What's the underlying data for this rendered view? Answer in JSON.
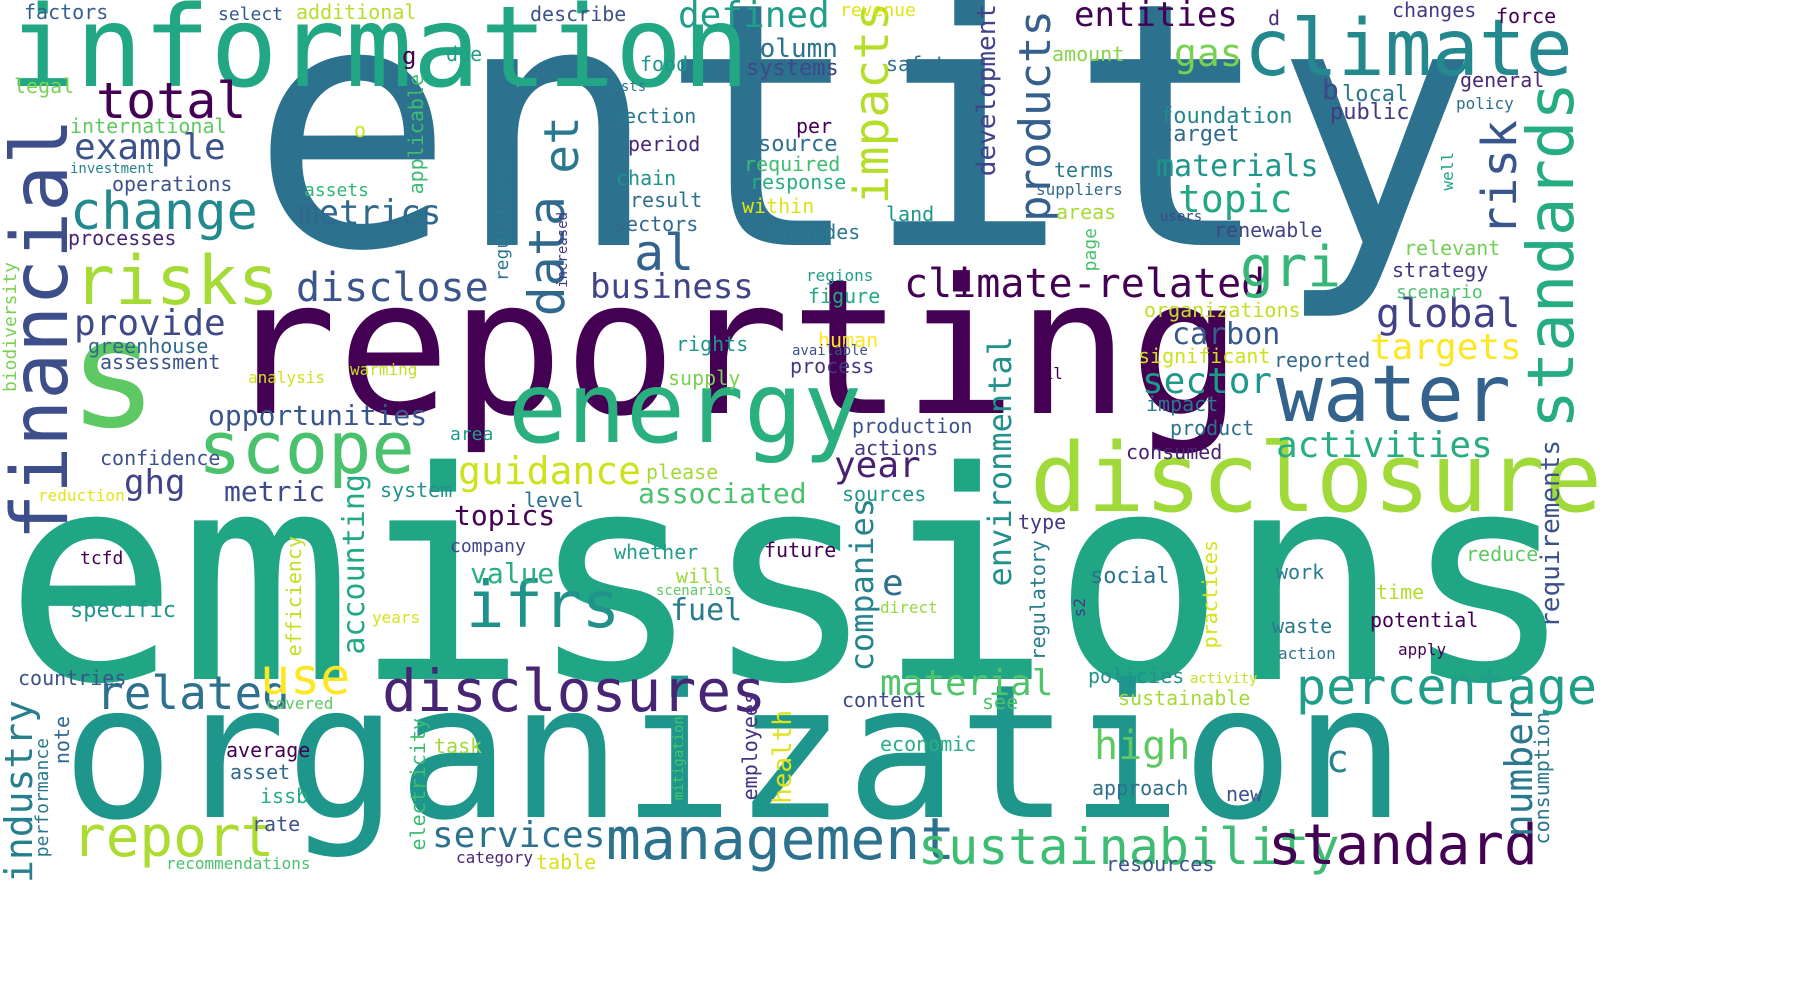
{
  "words": [
    {
      "text": "entity",
      "color": "#2c728e"
    },
    {
      "text": "emissions",
      "color": "#21a685"
    },
    {
      "text": "reporting",
      "color": "#440154"
    },
    {
      "text": "organization",
      "color": "#1f968b"
    },
    {
      "text": "information",
      "color": "#22a784"
    },
    {
      "text": "climate",
      "color": "#23898e"
    },
    {
      "text": "disclosure",
      "color": "#a0da39"
    },
    {
      "text": "energy",
      "color": "#2ab07f"
    },
    {
      "text": "water",
      "color": "#33638d"
    },
    {
      "text": "standards",
      "color": "#25ac82"
    },
    {
      "text": "financial",
      "color": "#3d4e8a"
    },
    {
      "text": "s",
      "color": "#5ec962"
    },
    {
      "text": "scope",
      "color": "#4ac16d"
    },
    {
      "text": "risks",
      "color": "#a5db36"
    },
    {
      "text": "disclosures",
      "color": "#482475"
    },
    {
      "text": "management",
      "color": "#2c728e"
    },
    {
      "text": "sustainability",
      "color": "#3fbc73"
    },
    {
      "text": "standard",
      "color": "#440154"
    },
    {
      "text": "report",
      "color": "#addc30"
    },
    {
      "text": "percentage",
      "color": "#1f9e89"
    },
    {
      "text": "climate-related",
      "color": "#440154"
    },
    {
      "text": "total",
      "color": "#440154"
    },
    {
      "text": "change",
      "color": "#23898e"
    },
    {
      "text": "related",
      "color": "#2c728e"
    },
    {
      "text": "ifrs",
      "color": "#21918c"
    },
    {
      "text": "products",
      "color": "#355f8d"
    },
    {
      "text": "impacts",
      "color": "#b5de2b"
    },
    {
      "text": "risk",
      "color": "#39568c"
    },
    {
      "text": "gri",
      "color": "#35b779"
    },
    {
      "text": "global",
      "color": "#424086"
    },
    {
      "text": "guidance",
      "color": "#cde11d"
    },
    {
      "text": "use",
      "color": "#fde725"
    },
    {
      "text": "data",
      "color": "#31688e"
    },
    {
      "text": "et",
      "color": "#2a788e"
    },
    {
      "text": "al",
      "color": "#33638d"
    },
    {
      "text": "disclose",
      "color": "#3a548c"
    },
    {
      "text": "business",
      "color": "#414487"
    },
    {
      "text": "metrics",
      "color": "#31688e"
    },
    {
      "text": "topic",
      "color": "#22a884"
    },
    {
      "text": "defined",
      "color": "#1f9e89"
    },
    {
      "text": "entities",
      "color": "#440154"
    },
    {
      "text": "gas",
      "color": "#7ad151"
    },
    {
      "text": "example",
      "color": "#3b528b"
    },
    {
      "text": "provide",
      "color": "#3e4a89"
    },
    {
      "text": "opportunities",
      "color": "#39568c"
    },
    {
      "text": "ghg",
      "color": "#404387"
    },
    {
      "text": "metric",
      "color": "#3e4989"
    },
    {
      "text": "year",
      "color": "#482173"
    },
    {
      "text": "sector",
      "color": "#1f9a8a"
    },
    {
      "text": "activities",
      "color": "#27ad81"
    },
    {
      "text": "targets",
      "color": "#fde725"
    },
    {
      "text": "carbon",
      "color": "#38598c"
    },
    {
      "text": "materials",
      "color": "#1f968b"
    },
    {
      "text": "environmental",
      "color": "#21918c"
    },
    {
      "text": "companies",
      "color": "#25848e"
    },
    {
      "text": "accounting",
      "color": "#22a884"
    },
    {
      "text": "material",
      "color": "#50c46a"
    },
    {
      "text": "associated",
      "color": "#4ac16d"
    },
    {
      "text": "topics",
      "color": "#440154"
    },
    {
      "text": "value",
      "color": "#29af7f"
    },
    {
      "text": "fuel",
      "color": "#287c8e"
    },
    {
      "text": "services",
      "color": "#2c728e"
    },
    {
      "text": "high",
      "color": "#5ec962"
    },
    {
      "text": "c",
      "color": "#25848e"
    },
    {
      "text": "e",
      "color": "#2c728e"
    },
    {
      "text": "industry",
      "color": "#277f8e"
    },
    {
      "text": "number",
      "color": "#2a788e"
    },
    {
      "text": "requirements",
      "color": "#3b528b"
    },
    {
      "text": "column",
      "color": "#2c728e"
    },
    {
      "text": "systems",
      "color": "#404688"
    },
    {
      "text": "development",
      "color": "#404387"
    },
    {
      "text": "foundation",
      "color": "#24878e"
    },
    {
      "text": "target",
      "color": "#2f6b8e"
    },
    {
      "text": "b",
      "color": "#3f4788"
    },
    {
      "text": "local",
      "color": "#2a788e"
    },
    {
      "text": "public",
      "color": "#443983"
    },
    {
      "text": "general",
      "color": "#482878"
    },
    {
      "text": "policy",
      "color": "#2e6f8e"
    },
    {
      "text": "changes",
      "color": "#443983"
    },
    {
      "text": "force",
      "color": "#440154"
    },
    {
      "text": "d",
      "color": "#472c7a"
    },
    {
      "text": "amount",
      "color": "#86d549"
    },
    {
      "text": "safety",
      "color": "#2e6f8e"
    },
    {
      "text": "revenue",
      "color": "#dde318"
    },
    {
      "text": "describe",
      "color": "#3b528b"
    },
    {
      "text": "additional",
      "color": "#b5de2b"
    },
    {
      "text": "select",
      "color": "#38598c"
    },
    {
      "text": "factors",
      "color": "#355f8d"
    },
    {
      "text": "legal",
      "color": "#7ad151"
    },
    {
      "text": "international",
      "color": "#5ec962"
    },
    {
      "text": "investment",
      "color": "#25848e"
    },
    {
      "text": "operations",
      "color": "#3b528b"
    },
    {
      "text": "processes",
      "color": "#482475"
    },
    {
      "text": "assets",
      "color": "#32b67a"
    },
    {
      "text": "applicable",
      "color": "#3fbc73"
    },
    {
      "text": "g",
      "color": "#440154"
    },
    {
      "text": "o",
      "color": "#d0e11c"
    },
    {
      "text": "due",
      "color": "#1f9e89"
    },
    {
      "text": "food",
      "color": "#1f968b"
    },
    {
      "text": "costs",
      "color": "#2a788e"
    },
    {
      "text": "section",
      "color": "#2a788e"
    },
    {
      "text": "period",
      "color": "#482878"
    },
    {
      "text": "chain",
      "color": "#21918c"
    },
    {
      "text": "result",
      "color": "#2e6f8e"
    },
    {
      "text": "sectors",
      "color": "#31688e"
    },
    {
      "text": "regulations",
      "color": "#2a788e"
    },
    {
      "text": "increased",
      "color": "#443a83"
    },
    {
      "text": "per",
      "color": "#440154"
    },
    {
      "text": "source",
      "color": "#2e6f8e"
    },
    {
      "text": "required",
      "color": "#3fbc73"
    },
    {
      "text": "response",
      "color": "#29af7f"
    },
    {
      "text": "within",
      "color": "#dde318"
    },
    {
      "text": "includes",
      "color": "#2a788e"
    },
    {
      "text": "land",
      "color": "#1f968b"
    },
    {
      "text": "areas",
      "color": "#a5db36"
    },
    {
      "text": "suppliers",
      "color": "#31688e"
    },
    {
      "text": "users",
      "color": "#3e4989"
    },
    {
      "text": "terms",
      "color": "#2a788e"
    },
    {
      "text": "renewable",
      "color": "#414487"
    },
    {
      "text": "well",
      "color": "#1fa188"
    },
    {
      "text": "relevant",
      "color": "#73d056"
    },
    {
      "text": "strategy",
      "color": "#463480"
    },
    {
      "text": "scenario",
      "color": "#4ac16d"
    },
    {
      "text": "organizations",
      "color": "#c0df25"
    },
    {
      "text": "significant",
      "color": "#cde11d"
    },
    {
      "text": "reported",
      "color": "#31688e"
    },
    {
      "text": "oil",
      "color": "#440154"
    },
    {
      "text": "impact",
      "color": "#2a788e"
    },
    {
      "text": "product",
      "color": "#2e6f8e"
    },
    {
      "text": "consumed",
      "color": "#482173"
    },
    {
      "text": "page",
      "color": "#4ac16d"
    },
    {
      "text": "regions",
      "color": "#1f9e89"
    },
    {
      "text": "figure",
      "color": "#22a884"
    },
    {
      "text": "human",
      "color": "#fde725"
    },
    {
      "text": "rights",
      "color": "#1f968b"
    },
    {
      "text": "available",
      "color": "#3b528b"
    },
    {
      "text": "process",
      "color": "#453781"
    },
    {
      "text": "supply",
      "color": "#7ad151"
    },
    {
      "text": "production",
      "color": "#3b528b"
    },
    {
      "text": "actions",
      "color": "#443983"
    },
    {
      "text": "please",
      "color": "#a0da39"
    },
    {
      "text": "sources",
      "color": "#1f968b"
    },
    {
      "text": "level",
      "color": "#2e6f8e"
    },
    {
      "text": "system",
      "color": "#21918c"
    },
    {
      "text": "area",
      "color": "#1f9e89"
    },
    {
      "text": "whether",
      "color": "#1f9e89"
    },
    {
      "text": "company",
      "color": "#404688"
    },
    {
      "text": "will",
      "color": "#9bd93c"
    },
    {
      "text": "scenarios",
      "color": "#5ec962"
    },
    {
      "text": "future",
      "color": "#440154"
    },
    {
      "text": "direct",
      "color": "#95d840"
    },
    {
      "text": "s2",
      "color": "#443983"
    },
    {
      "text": "social",
      "color": "#2c728e"
    },
    {
      "text": "type",
      "color": "#443983"
    },
    {
      "text": "regulatory",
      "color": "#287d8e"
    },
    {
      "text": "practices",
      "color": "#d8e219"
    },
    {
      "text": "work",
      "color": "#287c8e"
    },
    {
      "text": "waste",
      "color": "#2a788e"
    },
    {
      "text": "potential",
      "color": "#440154"
    },
    {
      "text": "time",
      "color": "#b5de2b"
    },
    {
      "text": "reduce",
      "color": "#5ec962"
    },
    {
      "text": "action",
      "color": "#2c728e"
    },
    {
      "text": "apply",
      "color": "#440154"
    },
    {
      "text": "activity",
      "color": "#c8e020"
    },
    {
      "text": "policies",
      "color": "#21918c"
    },
    {
      "text": "sustainable",
      "color": "#a5db36"
    },
    {
      "text": "content",
      "color": "#3e4989"
    },
    {
      "text": "see",
      "color": "#4ac16d"
    },
    {
      "text": "economic",
      "color": "#2ab07f"
    },
    {
      "text": "approach",
      "color": "#2e6f8e"
    },
    {
      "text": "new",
      "color": "#3b528b"
    },
    {
      "text": "health",
      "color": "#dde318"
    },
    {
      "text": "employees",
      "color": "#46327e"
    },
    {
      "text": "mitigation",
      "color": "#4ac16d"
    },
    {
      "text": "electricity",
      "color": "#3fbc73"
    },
    {
      "text": "task",
      "color": "#a0da39"
    },
    {
      "text": "average",
      "color": "#440154"
    },
    {
      "text": "asset",
      "color": "#31688e"
    },
    {
      "text": "issb",
      "color": "#27ad81"
    },
    {
      "text": "rate",
      "color": "#3b528b"
    },
    {
      "text": "efficiency",
      "color": "#c2df23"
    },
    {
      "text": "years",
      "color": "#d8e219"
    },
    {
      "text": "specific",
      "color": "#1f968b"
    },
    {
      "text": "confidence",
      "color": "#3b528b"
    },
    {
      "text": "reduction",
      "color": "#e5e419"
    },
    {
      "text": "analysis",
      "color": "#d0e11c"
    },
    {
      "text": "warming",
      "color": "#c0df25"
    },
    {
      "text": "assessment",
      "color": "#3b528b"
    },
    {
      "text": "greenhouse",
      "color": "#31688e"
    },
    {
      "text": "biodiversity",
      "color": "#7ad151"
    },
    {
      "text": "tcfd",
      "color": "#440154"
    },
    {
      "text": "countries",
      "color": "#3b528b"
    },
    {
      "text": "note",
      "color": "#31688e"
    },
    {
      "text": "performance",
      "color": "#2a788e"
    },
    {
      "text": "covered",
      "color": "#5ec962"
    },
    {
      "text": "recommendations",
      "color": "#4ac16d"
    },
    {
      "text": "category",
      "color": "#482878"
    },
    {
      "text": "table",
      "color": "#d8e219"
    },
    {
      "text": "resources",
      "color": "#3b528b"
    },
    {
      "text": "consumption",
      "color": "#2a788e"
    }
  ]
}
